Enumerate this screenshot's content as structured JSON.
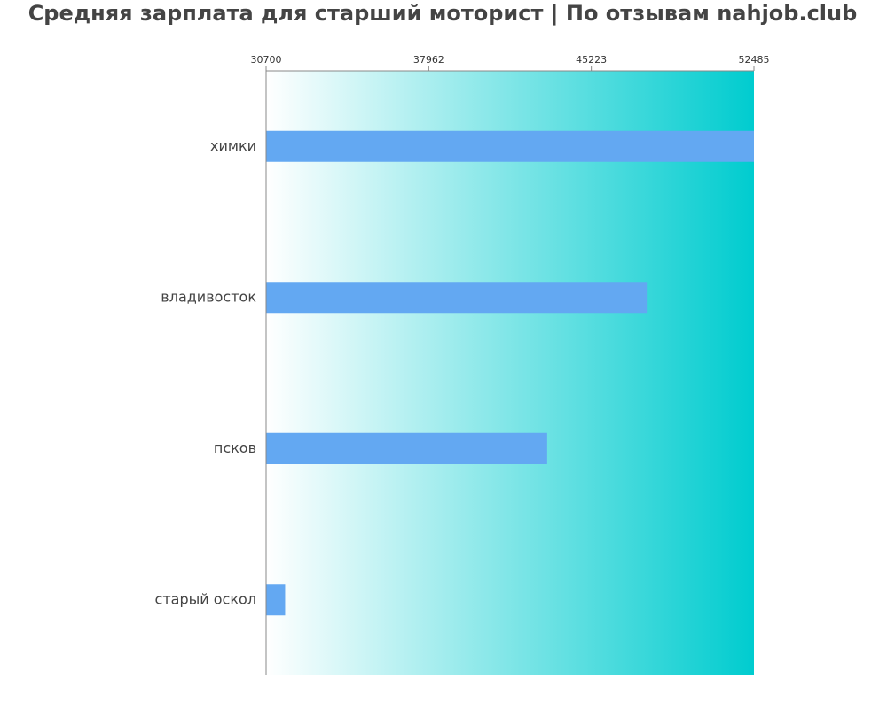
{
  "chart_data": {
    "type": "bar",
    "orientation": "horizontal",
    "title": "Средняя зарплата для старший моторист | По отзывам nahjob.club",
    "xlabel": "",
    "ylabel": "",
    "categories": [
      "химки",
      "владивосток",
      "псков",
      "старый оскол"
    ],
    "values": [
      52485,
      47700,
      43250,
      31550
    ],
    "xlim": [
      30700,
      52485
    ],
    "xticks": [
      30700,
      37962,
      45223,
      52485
    ],
    "xtick_labels": [
      "30700",
      "37962",
      "45223",
      "52485"
    ],
    "grid": false,
    "legend": "none",
    "colors": {
      "bar": "#63a8f2",
      "background_gradient_start": "#ffffff",
      "background_gradient_end": "#00cccf",
      "axis": "#888888",
      "title": "#444444"
    }
  }
}
